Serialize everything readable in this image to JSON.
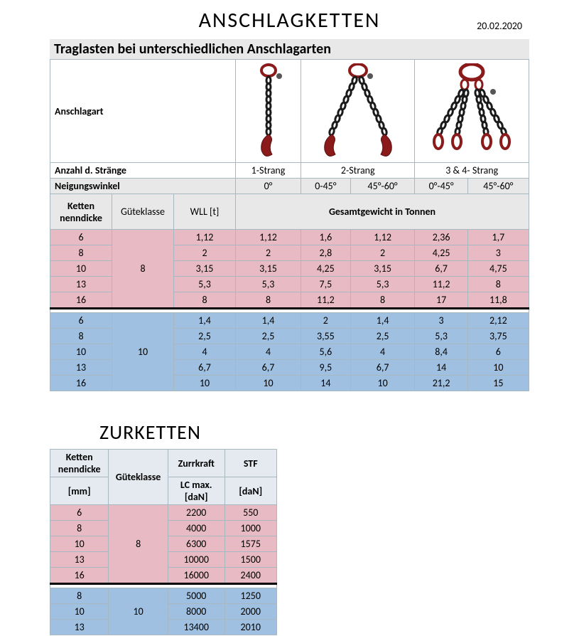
{
  "title1": "ANSCHLAGKETTEN",
  "date": "20.02.2020",
  "subtitle": "Traglasten bei unterschiedlichen Anschlagarten",
  "row_anschlagart_label": "Anschlagart",
  "row_straenge_label": "Anzahl d. Stränge",
  "straenge": [
    "1-Strang",
    "2-Strang",
    "3 & 4- Strang"
  ],
  "row_neigung_label": "Neigungswinkel",
  "neigung": [
    "0°",
    "0-45°",
    "45°-60°",
    "0°-45°",
    "45°-60°"
  ],
  "hdr_ketten": "Ketten nenndicke",
  "hdr_gk": "Güteklasse",
  "hdr_wll": "WLL [t]",
  "hdr_gesamt": "Gesamtgewicht in Tonnen",
  "gk8_label": "8",
  "gk10_label": "10",
  "gk8_rows": [
    {
      "k": "6",
      "wll": "1,12",
      "d": [
        "1,12",
        "1,6",
        "1,12",
        "2,36",
        "1,7"
      ]
    },
    {
      "k": "8",
      "wll": "2",
      "d": [
        "2",
        "2,8",
        "2",
        "4,25",
        "3"
      ]
    },
    {
      "k": "10",
      "wll": "3,15",
      "d": [
        "3,15",
        "4,25",
        "3,15",
        "6,7",
        "4,75"
      ]
    },
    {
      "k": "13",
      "wll": "5,3",
      "d": [
        "5,3",
        "7,5",
        "5,3",
        "11,2",
        "8"
      ]
    },
    {
      "k": "16",
      "wll": "8",
      "d": [
        "8",
        "11,2",
        "8",
        "17",
        "11,8"
      ]
    }
  ],
  "gk10_rows": [
    {
      "k": "6",
      "wll": "1,4",
      "d": [
        "1,4",
        "2",
        "1,4",
        "3",
        "2,12"
      ]
    },
    {
      "k": "8",
      "wll": "2,5",
      "d": [
        "2,5",
        "3,55",
        "2,5",
        "5,3",
        "3,75"
      ]
    },
    {
      "k": "10",
      "wll": "4",
      "d": [
        "4",
        "5,6",
        "4",
        "8,4",
        "6"
      ]
    },
    {
      "k": "13",
      "wll": "6,7",
      "d": [
        "6,7",
        "9,5",
        "6,7",
        "14",
        "10"
      ]
    },
    {
      "k": "16",
      "wll": "10",
      "d": [
        "10",
        "14",
        "10",
        "21,2",
        "15"
      ]
    }
  ],
  "title2": "ZURKETTEN",
  "t2_hdr_ketten": "Ketten nenndicke",
  "t2_hdr_gk": "Güteklasse",
  "t2_hdr_zurr": "Zurrkraft",
  "t2_hdr_stf": "STF",
  "t2_unit_mm": "[mm]",
  "t2_unit_lc": "LC max. [daN]",
  "t2_unit_dan": "[daN]",
  "t2_gk8_label": "8",
  "t2_gk10_label": "10",
  "t2_gk8_rows": [
    {
      "k": "6",
      "lc": "2200",
      "stf": "550"
    },
    {
      "k": "8",
      "lc": "4000",
      "stf": "1000"
    },
    {
      "k": "10",
      "lc": "6300",
      "stf": "1575"
    },
    {
      "k": "13",
      "lc": "10000",
      "stf": "1500"
    },
    {
      "k": "16",
      "lc": "16000",
      "stf": "2400"
    }
  ],
  "t2_gk10_rows": [
    {
      "k": "8",
      "lc": "5000",
      "stf": "1250"
    },
    {
      "k": "10",
      "lc": "8000",
      "stf": "2000"
    },
    {
      "k": "13",
      "lc": "13400",
      "stf": "2010"
    }
  ],
  "colors": {
    "pink": "#e8bbc4",
    "blue": "#9fc0e0",
    "grey": "#e8e8e8",
    "border": "#a8b8c0",
    "chain_red": "#8b1a1a",
    "chain_black": "#1a1a1a"
  }
}
